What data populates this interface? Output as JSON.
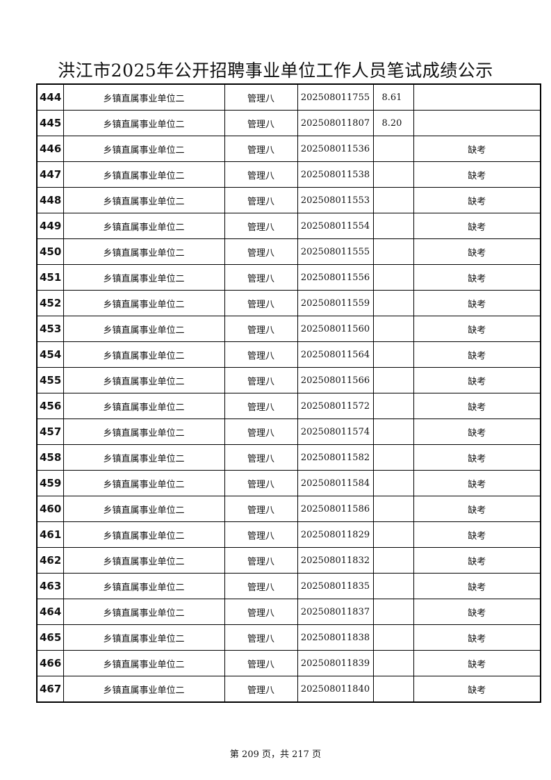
{
  "title": "洪江市2025年公开招聘事业单位工作人员笔试成绩公示",
  "rows": [
    {
      "no": "444",
      "unit": "乡镇直属事业单位二",
      "post": "管理八",
      "ticket": "202508011755",
      "score": "8.61",
      "remark": ""
    },
    {
      "no": "445",
      "unit": "乡镇直属事业单位二",
      "post": "管理八",
      "ticket": "202508011807",
      "score": "8.20",
      "remark": ""
    },
    {
      "no": "446",
      "unit": "乡镇直属事业单位二",
      "post": "管理八",
      "ticket": "202508011536",
      "score": "",
      "remark": "缺考"
    },
    {
      "no": "447",
      "unit": "乡镇直属事业单位二",
      "post": "管理八",
      "ticket": "202508011538",
      "score": "",
      "remark": "缺考"
    },
    {
      "no": "448",
      "unit": "乡镇直属事业单位二",
      "post": "管理八",
      "ticket": "202508011553",
      "score": "",
      "remark": "缺考"
    },
    {
      "no": "449",
      "unit": "乡镇直属事业单位二",
      "post": "管理八",
      "ticket": "202508011554",
      "score": "",
      "remark": "缺考"
    },
    {
      "no": "450",
      "unit": "乡镇直属事业单位二",
      "post": "管理八",
      "ticket": "202508011555",
      "score": "",
      "remark": "缺考"
    },
    {
      "no": "451",
      "unit": "乡镇直属事业单位二",
      "post": "管理八",
      "ticket": "202508011556",
      "score": "",
      "remark": "缺考"
    },
    {
      "no": "452",
      "unit": "乡镇直属事业单位二",
      "post": "管理八",
      "ticket": "202508011559",
      "score": "",
      "remark": "缺考"
    },
    {
      "no": "453",
      "unit": "乡镇直属事业单位二",
      "post": "管理八",
      "ticket": "202508011560",
      "score": "",
      "remark": "缺考"
    },
    {
      "no": "454",
      "unit": "乡镇直属事业单位二",
      "post": "管理八",
      "ticket": "202508011564",
      "score": "",
      "remark": "缺考"
    },
    {
      "no": "455",
      "unit": "乡镇直属事业单位二",
      "post": "管理八",
      "ticket": "202508011566",
      "score": "",
      "remark": "缺考"
    },
    {
      "no": "456",
      "unit": "乡镇直属事业单位二",
      "post": "管理八",
      "ticket": "202508011572",
      "score": "",
      "remark": "缺考"
    },
    {
      "no": "457",
      "unit": "乡镇直属事业单位二",
      "post": "管理八",
      "ticket": "202508011574",
      "score": "",
      "remark": "缺考"
    },
    {
      "no": "458",
      "unit": "乡镇直属事业单位二",
      "post": "管理八",
      "ticket": "202508011582",
      "score": "",
      "remark": "缺考"
    },
    {
      "no": "459",
      "unit": "乡镇直属事业单位二",
      "post": "管理八",
      "ticket": "202508011584",
      "score": "",
      "remark": "缺考"
    },
    {
      "no": "460",
      "unit": "乡镇直属事业单位二",
      "post": "管理八",
      "ticket": "202508011586",
      "score": "",
      "remark": "缺考"
    },
    {
      "no": "461",
      "unit": "乡镇直属事业单位二",
      "post": "管理八",
      "ticket": "202508011829",
      "score": "",
      "remark": "缺考"
    },
    {
      "no": "462",
      "unit": "乡镇直属事业单位二",
      "post": "管理八",
      "ticket": "202508011832",
      "score": "",
      "remark": "缺考"
    },
    {
      "no": "463",
      "unit": "乡镇直属事业单位二",
      "post": "管理八",
      "ticket": "202508011835",
      "score": "",
      "remark": "缺考"
    },
    {
      "no": "464",
      "unit": "乡镇直属事业单位二",
      "post": "管理八",
      "ticket": "202508011837",
      "score": "",
      "remark": "缺考"
    },
    {
      "no": "465",
      "unit": "乡镇直属事业单位二",
      "post": "管理八",
      "ticket": "202508011838",
      "score": "",
      "remark": "缺考"
    },
    {
      "no": "466",
      "unit": "乡镇直属事业单位二",
      "post": "管理八",
      "ticket": "202508011839",
      "score": "",
      "remark": "缺考"
    },
    {
      "no": "467",
      "unit": "乡镇直属事业单位二",
      "post": "管理八",
      "ticket": "202508011840",
      "score": "",
      "remark": "缺考"
    }
  ],
  "footer": "第 209 页，共 217 页"
}
